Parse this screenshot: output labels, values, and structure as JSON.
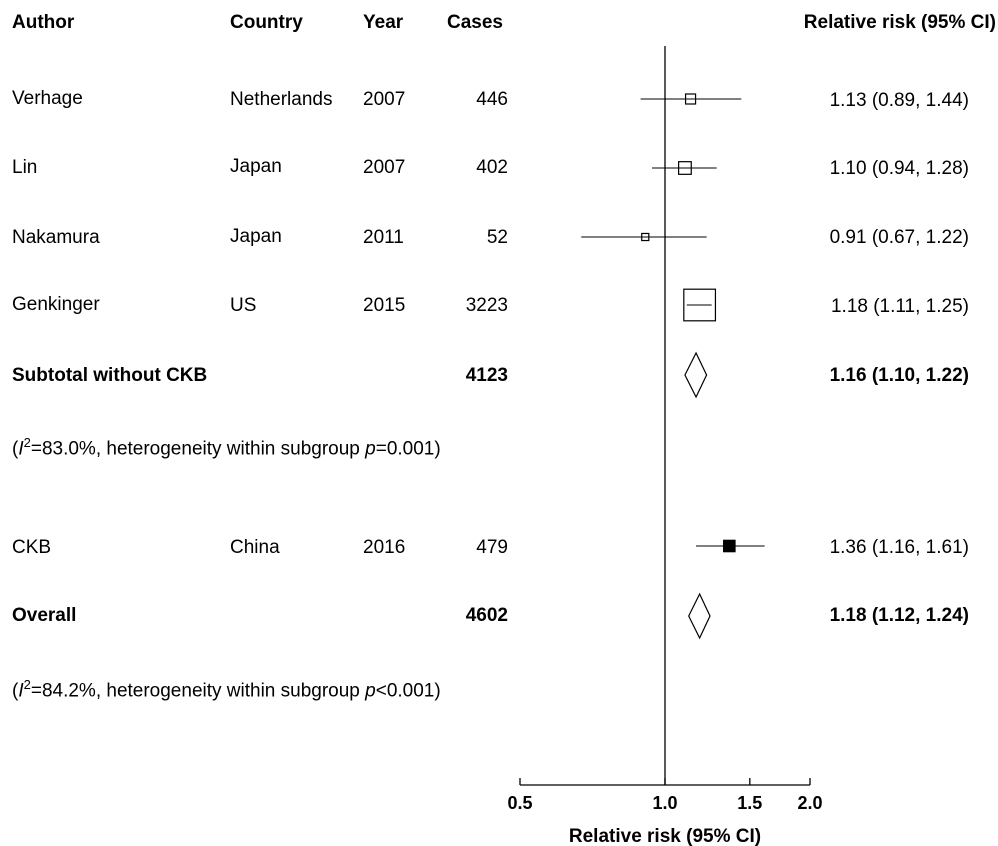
{
  "headers": {
    "author": "Author",
    "country": "Country",
    "year": "Year",
    "cases": "Cases",
    "rr": "Relative risk (95% CI)"
  },
  "rows": [
    {
      "author": "Verhage",
      "country": "Netherlands",
      "year": "2007",
      "cases": "446",
      "rr_text": "1.13 (0.89, 1.44)"
    },
    {
      "author": "Lin",
      "country": "Japan",
      "year": "2007",
      "cases": "402",
      "rr_text": "1.10 (0.94, 1.28)"
    },
    {
      "author": "Nakamura",
      "country": "Japan",
      "year": "2011",
      "cases": "52",
      "rr_text": "0.91 (0.67, 1.22)"
    },
    {
      "author": "Genkinger",
      "country": "US",
      "year": "2015",
      "cases": "3223",
      "rr_text": "1.18 (1.11, 1.25)"
    }
  ],
  "subtotal": {
    "label": "Subtotal without CKB",
    "cases": "4123",
    "rr_text": "1.16 (1.10, 1.22)"
  },
  "subtotal_het": {
    "open": "(",
    "i": "I",
    "sup": "2",
    "mid": "=83.0%, heterogeneity within subgroup ",
    "p": "p",
    "rest": "=0.001)"
  },
  "ckb": {
    "author": "CKB",
    "country": "China",
    "year": "2016",
    "cases": "479",
    "rr_text": "1.36 (1.16, 1.61)"
  },
  "overall": {
    "label": "Overall",
    "cases": "4602",
    "rr_text": "1.18 (1.12, 1.24)"
  },
  "overall_het": {
    "open": "(",
    "i": "I",
    "sup": "2",
    "mid": "=84.2%, heterogeneity within subgroup ",
    "p": "p",
    "rest": "<0.001)"
  },
  "chart_data": {
    "type": "forest",
    "xlabel": "Relative risk (95% CI)",
    "x_scale": "log",
    "xlim": [
      0.5,
      2.0
    ],
    "ticks": [
      0.5,
      1.0,
      1.5,
      2.0
    ],
    "tick_labels": [
      "0.5",
      "1.0",
      "1.5",
      "2.0"
    ],
    "reference_line": 1.0,
    "studies": [
      {
        "label": "Verhage",
        "rr": 1.13,
        "lower": 0.89,
        "upper": 1.44,
        "weight": 1.0
      },
      {
        "label": "Lin",
        "rr": 1.1,
        "lower": 0.94,
        "upper": 1.28,
        "weight": 1.6
      },
      {
        "label": "Nakamura",
        "rr": 0.91,
        "lower": 0.67,
        "upper": 1.22,
        "weight": 0.5
      },
      {
        "label": "Genkinger",
        "rr": 1.18,
        "lower": 1.11,
        "upper": 1.25,
        "weight": 10.0
      },
      {
        "label": "CKB",
        "rr": 1.36,
        "lower": 1.16,
        "upper": 1.61,
        "weight": 1.3,
        "filled": true
      }
    ],
    "pooled": [
      {
        "label": "Subtotal without CKB",
        "rr": 1.16,
        "lower": 1.1,
        "upper": 1.22
      },
      {
        "label": "Overall",
        "rr": 1.18,
        "lower": 1.12,
        "upper": 1.24
      }
    ]
  }
}
